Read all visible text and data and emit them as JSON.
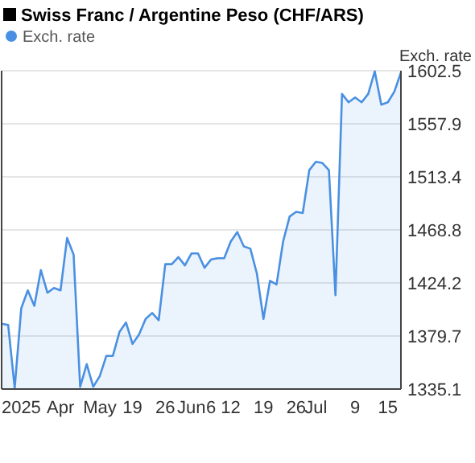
{
  "chart_data": {
    "type": "area",
    "title": "Swiss Franc / Argentine Peso (CHF/ARS)",
    "ylabel": "Exch. rate",
    "categories": [
      null,
      null,
      null,
      "2025",
      null,
      null,
      null,
      null,
      null,
      "Apr",
      null,
      null,
      null,
      null,
      null,
      "May",
      null,
      null,
      null,
      null,
      "19",
      null,
      null,
      null,
      null,
      "26",
      null,
      null,
      null,
      "Jun",
      null,
      null,
      "6",
      null,
      null,
      "12",
      null,
      null,
      null,
      null,
      "19",
      null,
      null,
      null,
      null,
      "26",
      null,
      null,
      "Jul",
      null,
      null,
      null,
      null,
      null,
      "9",
      null,
      null,
      null,
      null,
      "15",
      null,
      null
    ],
    "series": [
      {
        "name": "Exch. rate",
        "color": "#4a90e2",
        "values": [
          1390,
          1389,
          1336,
          1403,
          1418,
          1405,
          1435,
          1416,
          1420,
          1418,
          1462,
          1448,
          1337,
          1356,
          1337,
          1346,
          1363,
          1363,
          1383,
          1391,
          1373,
          1381,
          1394,
          1399,
          1393,
          1440,
          1440,
          1446,
          1439,
          1449,
          1449,
          1437,
          1444,
          1445,
          1445,
          1459,
          1467,
          1455,
          1453,
          1432,
          1394,
          1426,
          1423,
          1459,
          1480,
          1484,
          1483,
          1519,
          1526,
          1525,
          1519,
          1414,
          1583,
          1576,
          1580,
          1576,
          1583,
          1602,
          1574,
          1576,
          1585,
          1601
        ]
      }
    ],
    "ylim": [
      1335.1,
      1602.5
    ],
    "yticks": [
      1335.1,
      1379.7,
      1424.2,
      1468.8,
      1513.4,
      1557.9,
      1602.5
    ],
    "grid": "y",
    "legend": "top left",
    "marker": "none"
  }
}
